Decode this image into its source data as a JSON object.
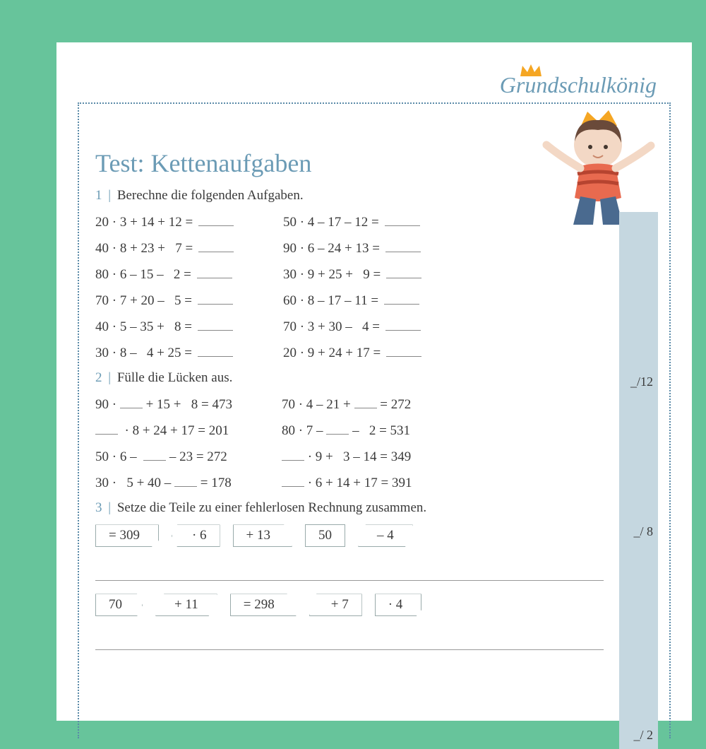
{
  "brand": "Grundschulkönig",
  "title": "Test: Kettenaufgaben",
  "colors": {
    "page_bg": "#67c49b",
    "paper": "#ffffff",
    "accent": "#6b9bb5",
    "text": "#3a3a3a",
    "score_strip": "#c5d7e0",
    "dotted_border": "#5a8aa8",
    "tile_border": "#99aaaa"
  },
  "sections": [
    {
      "num": "1",
      "instruction": "Berechne die folgenden Aufgaben.",
      "score": "_/12",
      "left": [
        "20 · 3 + 14 + 12 =",
        "40 · 8 + 23 +   7 =",
        "80 · 6 – 15 –   2 =",
        "70 · 7 + 20 –   5 =",
        "40 · 5 – 35 +   8 =",
        "30 · 8 –   4 + 25 ="
      ],
      "right": [
        "50 · 4 – 17 – 12 =",
        "90 · 6 – 24 + 13 =",
        "30 · 9 + 25 +   9 =",
        "60 · 8 – 17 – 11 =",
        "70 · 3 + 30 –   4 =",
        "20 · 9 + 24 + 17 ="
      ]
    },
    {
      "num": "2",
      "instruction": "Fülle die Lücken aus.",
      "score": "_/ 8",
      "left": [
        "90 · ___ + 15 +   8 = 473",
        "___  · 8 + 24 + 17 = 201",
        "50 · 6 –  ___ – 23 = 272",
        "30 ·   5 + 40 – ___ = 178"
      ],
      "right": [
        "70 · 4 – 21 + ___ = 272",
        "80 · 7 – ___ –   2 = 531",
        "___ · 9 +   3 – 14 = 349",
        "___ · 6 + 14 + 17 = 391"
      ]
    },
    {
      "num": "3",
      "instruction": "Setze die Teile zu einer fehlerlosen Rechnung zusammen.",
      "score": "_/ 2",
      "tile_rows": [
        [
          {
            "text": "= 309",
            "shape": "sh-cut"
          },
          {
            "text": "· 6",
            "shape": "sh-pent-l"
          },
          {
            "text": "+ 13",
            "shape": "sh-trap-r"
          },
          {
            "text": "50",
            "shape": ""
          },
          {
            "text": "– 4",
            "shape": "sh-para"
          }
        ],
        [
          {
            "text": "70",
            "shape": "sh-pent-r"
          },
          {
            "text": "+ 11",
            "shape": "sh-para"
          },
          {
            "text": "= 298",
            "shape": "sh-trap-r"
          },
          {
            "text": "+ 7",
            "shape": "sh-trap-l"
          },
          {
            "text": "· 4",
            "shape": "sh-cut"
          }
        ]
      ]
    }
  ]
}
